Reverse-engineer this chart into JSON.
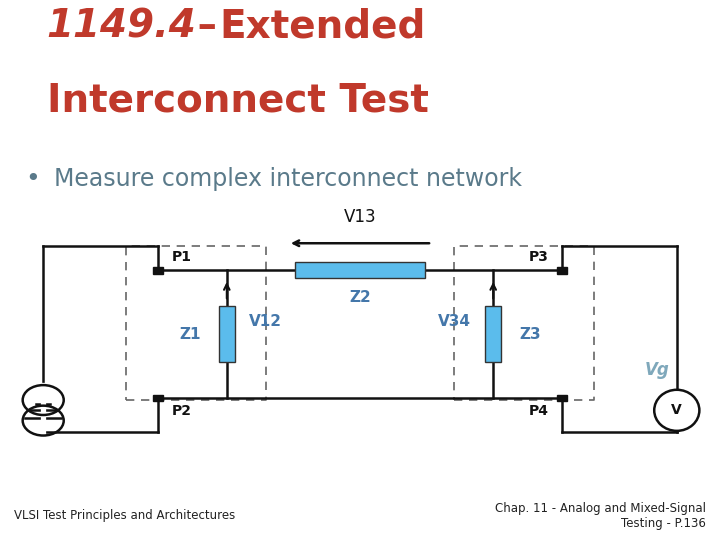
{
  "title_italic": "1149.4",
  "title_dash": " – ",
  "title_rest": "Extended",
  "title_line2": "Interconnect Test",
  "title_color": "#c0392b",
  "bullet_text": "Measure complex interconnect network",
  "bullet_color": "#5a7a8a",
  "bg_color": "#ffffff",
  "footer_bg": "#c8d8e8",
  "footer_left": "VLSI Test Principles and Architectures",
  "footer_right": "Chap. 11 - Analog and Mixed-Signal\nTesting - P.136",
  "blue_color": "#5bbcec",
  "line_color": "#111111",
  "node_color": "#111111",
  "vg_color": "#7fa8bb",
  "label_color": "#4477aa"
}
